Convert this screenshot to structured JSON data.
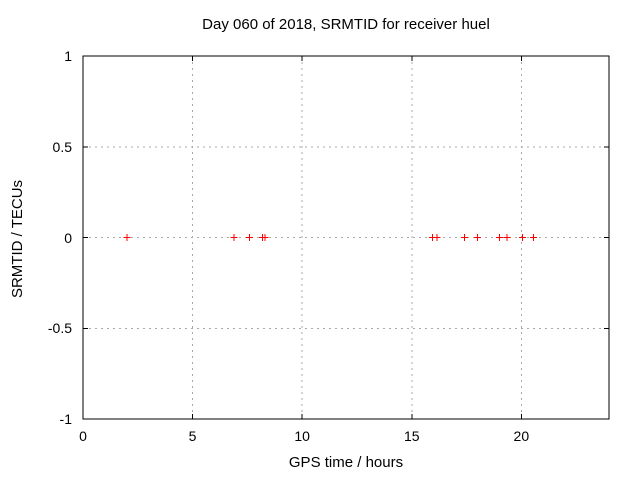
{
  "colors": {
    "point": "#ff0000",
    "grid": "#a8a8a8",
    "frame": "#000000",
    "background": "#ffffff",
    "text": "#000000"
  },
  "chart_data": {
    "type": "scatter",
    "title": "Day 060 of 2018, SRMTID for receiver huel",
    "xlabel": "GPS time / hours",
    "ylabel": "SRMTID / TECUs",
    "xlim": [
      0,
      24
    ],
    "ylim": [
      -1,
      1
    ],
    "xticks": [
      0,
      5,
      10,
      15,
      20
    ],
    "xtick_labels": [
      "0",
      "5",
      "10",
      "15",
      "20"
    ],
    "yticks": [
      -1,
      -0.5,
      0,
      0.5,
      1
    ],
    "ytick_labels": [
      "-1",
      "-0.5",
      "0",
      "0.5",
      "1"
    ],
    "grid": true,
    "grid_style": "dashed",
    "legend": "none",
    "marker": "plus",
    "series": [
      {
        "name": "SRMTID",
        "x": [
          2.0,
          6.9,
          7.6,
          8.2,
          8.3,
          15.95,
          16.15,
          17.4,
          18.0,
          19.0,
          19.35,
          20.05,
          20.55
        ],
        "y": [
          0,
          0,
          0,
          0,
          0,
          0,
          0,
          0,
          0,
          0,
          0,
          0,
          0
        ]
      }
    ]
  }
}
